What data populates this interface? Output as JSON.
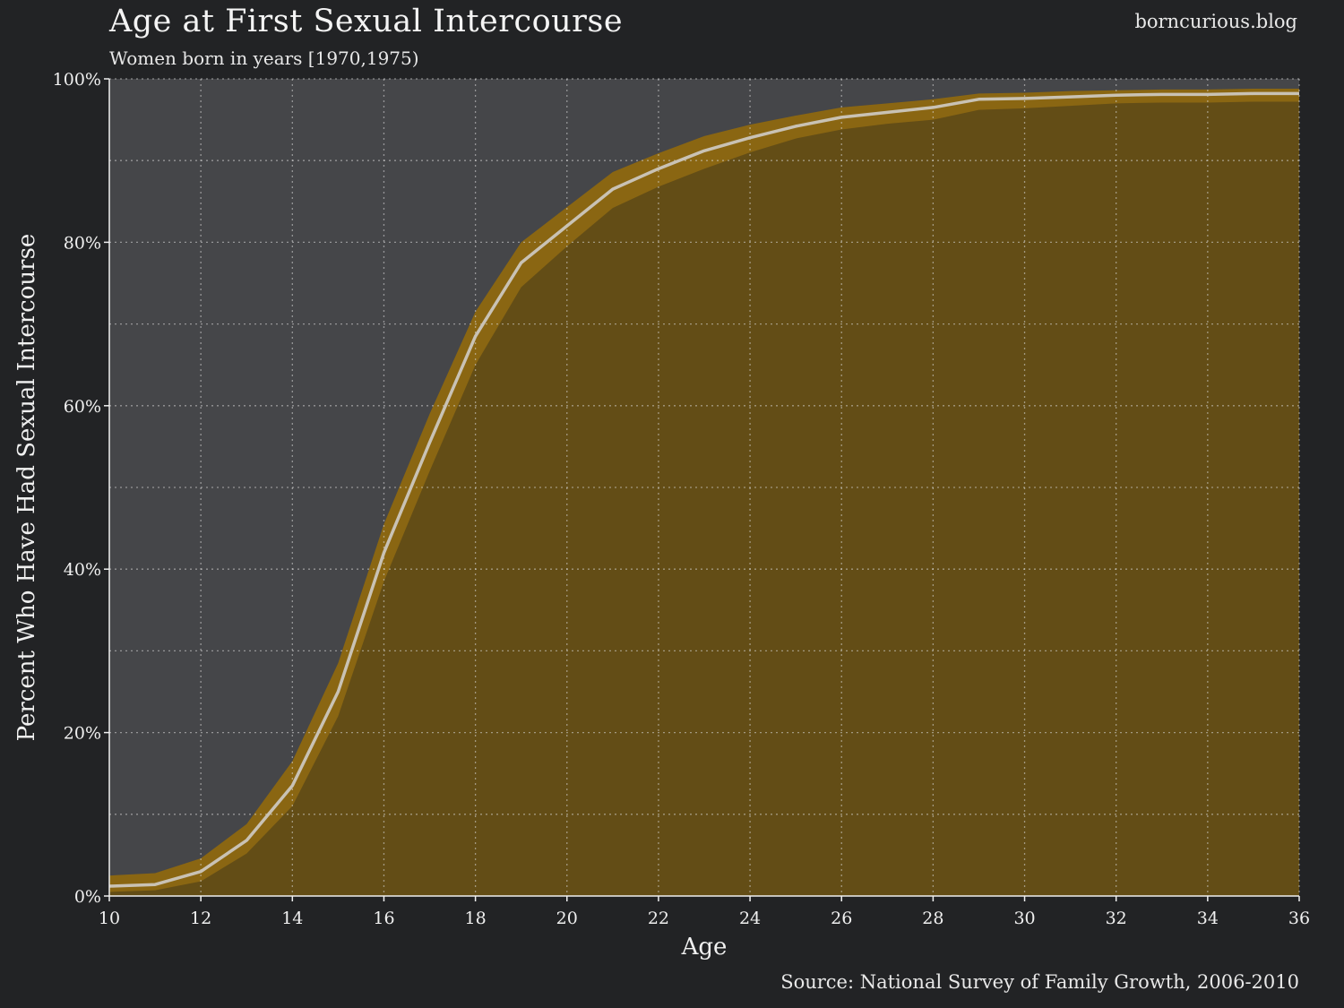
{
  "header": {
    "title": "Age at First Sexual Intercourse",
    "subtitle": "Women born in years [1970,1975)",
    "brand": "borncurious.blog"
  },
  "footer": {
    "source": "Source: National Survey of Family Growth, 2006-2010"
  },
  "colors": {
    "page_background": "#222325",
    "plot_background": "#454649",
    "area_fill": "#634d16",
    "band_fill": "#8a6612",
    "line": "#c9c2b4",
    "grid": "#d8d8d8"
  },
  "chart_data": {
    "type": "area",
    "title": "Age at First Sexual Intercourse",
    "subtitle": "Women born in years [1970,1975)",
    "xlabel": "Age",
    "ylabel": "Percent Who Have Had Sexual Intercourse",
    "xlim": [
      10,
      36
    ],
    "ylim": [
      0,
      100
    ],
    "x_ticks": [
      10,
      12,
      14,
      16,
      18,
      20,
      22,
      24,
      26,
      28,
      30,
      32,
      34,
      36
    ],
    "y_ticks": [
      0,
      20,
      40,
      60,
      80,
      100
    ],
    "y_tick_labels": [
      "0%",
      "20%",
      "40%",
      "60%",
      "80%",
      "100%"
    ],
    "y_minor_gridlines": [
      10,
      30,
      50,
      70,
      90
    ],
    "grid": true,
    "grid_style": "dotted",
    "x": [
      10,
      11,
      12,
      13,
      14,
      15,
      16,
      17,
      18,
      19,
      20,
      21,
      22,
      23,
      24,
      25,
      26,
      27,
      28,
      29,
      30,
      31,
      32,
      33,
      34,
      35,
      36
    ],
    "series": [
      {
        "values": [
          1.2,
          1.4,
          3.0,
          6.8,
          13.5,
          25.0,
          42.0,
          55.5,
          68.5,
          77.5,
          82.0,
          86.5,
          89.0,
          91.2,
          92.8,
          94.2,
          95.3,
          95.9,
          96.5,
          97.5,
          97.6,
          97.8,
          98.0,
          98.1,
          98.1,
          98.2,
          98.2
        ],
        "ci_upper": [
          2.5,
          2.8,
          4.6,
          8.8,
          16.5,
          28.5,
          45.5,
          59.0,
          71.5,
          80.0,
          84.3,
          88.6,
          90.9,
          93.0,
          94.4,
          95.5,
          96.5,
          97.0,
          97.5,
          98.2,
          98.3,
          98.5,
          98.6,
          98.7,
          98.7,
          98.8,
          98.8
        ],
        "ci_lower": [
          0.5,
          0.7,
          1.8,
          5.2,
          11.0,
          22.0,
          38.5,
          52.0,
          65.0,
          74.5,
          79.5,
          84.2,
          86.8,
          89.0,
          91.0,
          92.7,
          93.8,
          94.5,
          95.0,
          96.2,
          96.4,
          96.7,
          97.0,
          97.1,
          97.1,
          97.2,
          97.2
        ]
      }
    ]
  }
}
